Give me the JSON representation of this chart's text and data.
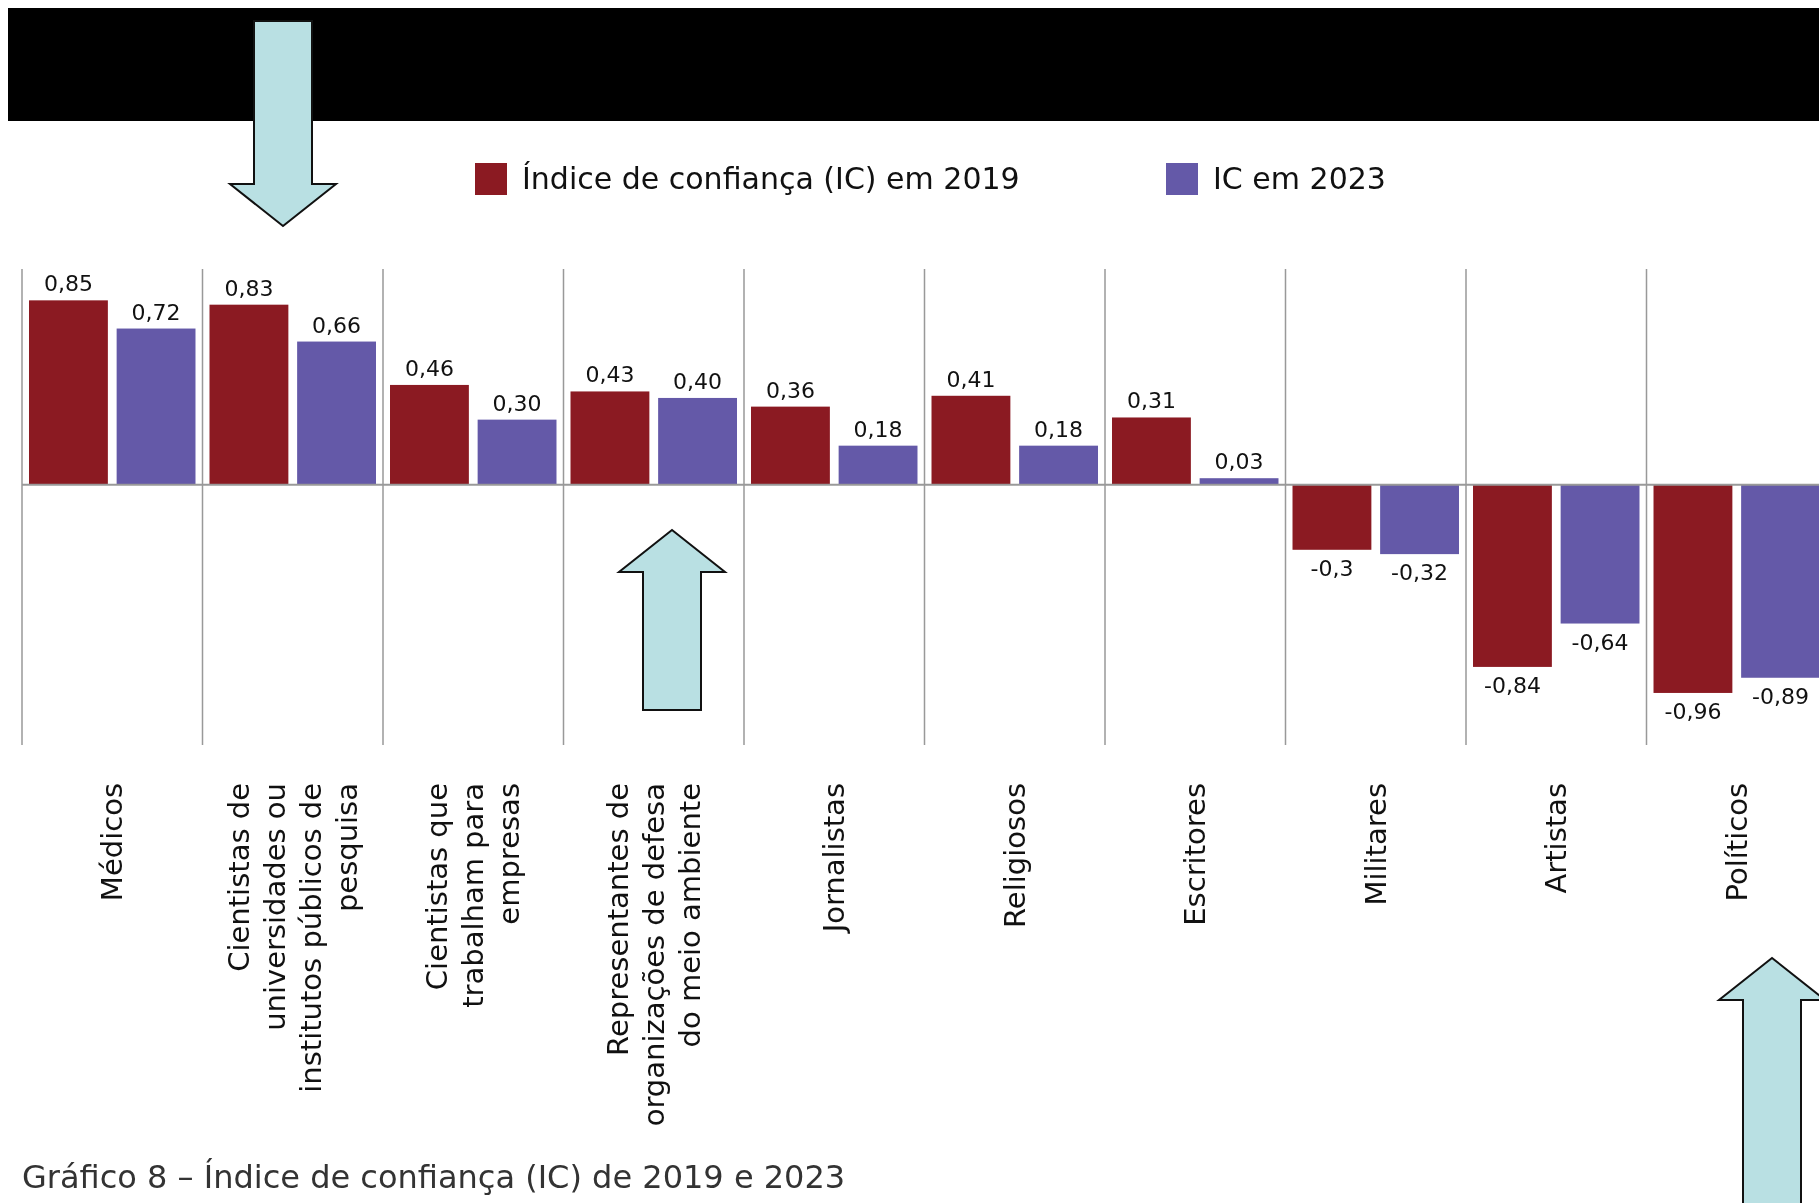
{
  "chart_data": {
    "type": "bar",
    "title": "Gráfico 8 – Índice de confiança (IC) de 2019 e 2023",
    "categories": [
      "Médicos",
      "Cientistas de universidades ou institutos públicos de pesquisa",
      "Cientistas que trabalham para empresas",
      "Representantes de organizações de defesa do meio ambiente",
      "Jornalistas",
      "Religiosos",
      "Escritores",
      "Militares",
      "Artistas",
      "Políticos"
    ],
    "series": [
      {
        "name": "Índice de confiança (IC) em 2019",
        "color": "#8b1a22",
        "values": [
          0.85,
          0.83,
          0.46,
          0.43,
          0.36,
          0.41,
          0.31,
          -0.3,
          -0.84,
          -0.96
        ],
        "value_labels": [
          "0,85",
          "0,83",
          "0,46",
          "0,43",
          "0,36",
          "0,41",
          "0,31",
          "-0,3",
          "-0,84",
          "-0,96"
        ]
      },
      {
        "name": "IC em 2023",
        "color": "#6459a8",
        "values": [
          0.72,
          0.66,
          0.3,
          0.4,
          0.18,
          0.18,
          0.03,
          -0.32,
          -0.64,
          -0.89
        ],
        "value_labels": [
          "0,72",
          "0,66",
          "0,30",
          "0,40",
          "0,18",
          "0,18",
          "0,03",
          "-0,32",
          "-0,64",
          "-0,89"
        ]
      }
    ],
    "legend": "top",
    "grid": "x"
  }
}
